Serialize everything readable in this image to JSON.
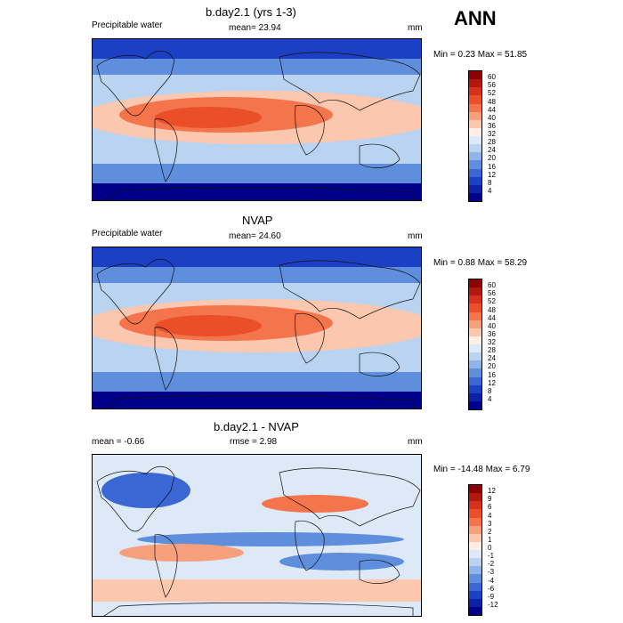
{
  "season": "ANN",
  "panels": [
    {
      "title": "b.day2.1 (yrs 1-3)",
      "left_label": "Precipitable water",
      "mean_label": "mean=  23.94",
      "units": "mm",
      "minmax": "Min =   0.23 Max =  51.85",
      "colorbar": {
        "labels": [
          "60",
          "56",
          "52",
          "48",
          "44",
          "40",
          "36",
          "32",
          "28",
          "24",
          "20",
          "16",
          "12",
          "8",
          "4"
        ],
        "colors": [
          "#8b0000",
          "#b2180e",
          "#d7301f",
          "#ea4f2a",
          "#f4744b",
          "#f89f7c",
          "#fbc7ae",
          "#fdeee6",
          "#dde9f7",
          "#b9d3f0",
          "#8fb5e8",
          "#5f8fdc",
          "#3a67d3",
          "#1c40c4",
          "#0d20a8",
          "#00008b"
        ]
      }
    },
    {
      "title": "NVAP",
      "left_label": "Precipitable water",
      "mean_label": "mean=  24.60",
      "units": "mm",
      "minmax": "Min =   0.88 Max =  58.29",
      "colorbar": {
        "labels": [
          "60",
          "56",
          "52",
          "48",
          "44",
          "40",
          "36",
          "32",
          "28",
          "24",
          "20",
          "16",
          "12",
          "8",
          "4"
        ],
        "colors": [
          "#8b0000",
          "#b2180e",
          "#d7301f",
          "#ea4f2a",
          "#f4744b",
          "#f89f7c",
          "#fbc7ae",
          "#fdeee6",
          "#dde9f7",
          "#b9d3f0",
          "#8fb5e8",
          "#5f8fdc",
          "#3a67d3",
          "#1c40c4",
          "#0d20a8",
          "#00008b"
        ]
      }
    },
    {
      "title": "b.day2.1 - NVAP",
      "left_label": "mean =  -0.66",
      "mean_label": "rmse =   2.98",
      "units": "mm",
      "minmax": "Min = -14.48 Max =   6.79",
      "colorbar": {
        "labels": [
          "12",
          "9",
          "6",
          "4",
          "3",
          "2",
          "1",
          "0",
          "-1",
          "-2",
          "-3",
          "-4",
          "-6",
          "-9",
          "-12"
        ],
        "colors": [
          "#8b0000",
          "#b2180e",
          "#d7301f",
          "#ea4f2a",
          "#f4744b",
          "#f89f7c",
          "#fbc7ae",
          "#fdeee6",
          "#dde9f7",
          "#b9d3f0",
          "#8fb5e8",
          "#5f8fdc",
          "#3a67d3",
          "#1c40c4",
          "#0d20a8",
          "#00008b"
        ]
      }
    }
  ]
}
